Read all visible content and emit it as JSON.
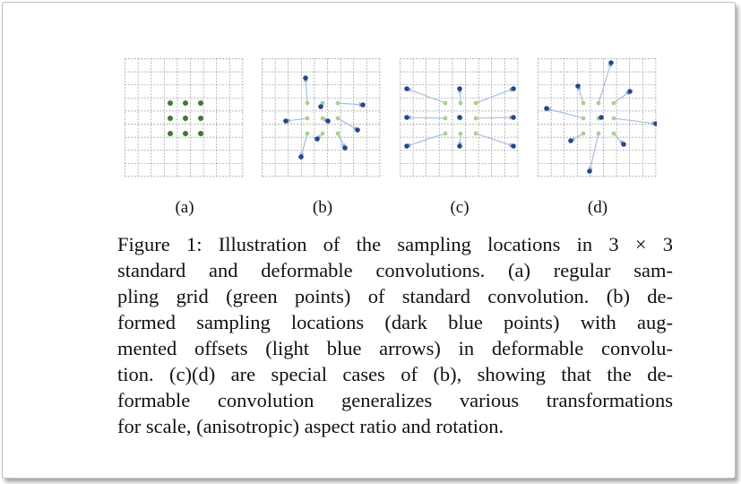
{
  "figure": {
    "panels": [
      {
        "id": "a",
        "label": "(a)",
        "base_color": "#3f7a2a",
        "points": "regular"
      },
      {
        "id": "b",
        "label": "(b)"
      },
      {
        "id": "c",
        "label": "(c)"
      },
      {
        "id": "d",
        "label": "(d)"
      }
    ],
    "colors": {
      "standard_point": "#3f7a2a",
      "deformed_point": "#26478a",
      "offset_arrow": "#9fb8d8",
      "base_point_light": "#a9d18e",
      "grid": "#9a9a9a"
    },
    "caption_lines": [
      "Figure 1: Illustration of the sampling locations in 3 × 3",
      "standard and deformable convolutions.  (a) regular sam-",
      "pling grid (green points) of standard convolution.  (b) de-",
      "formed sampling locations (dark blue points) with aug-",
      "mented offsets (light blue arrows) in deformable convolu-",
      "tion.  (c)(d) are special cases of (b), showing that the de-",
      "formable convolution generalizes various transformations",
      "for scale, (anisotropic) aspect ratio and rotation."
    ]
  }
}
